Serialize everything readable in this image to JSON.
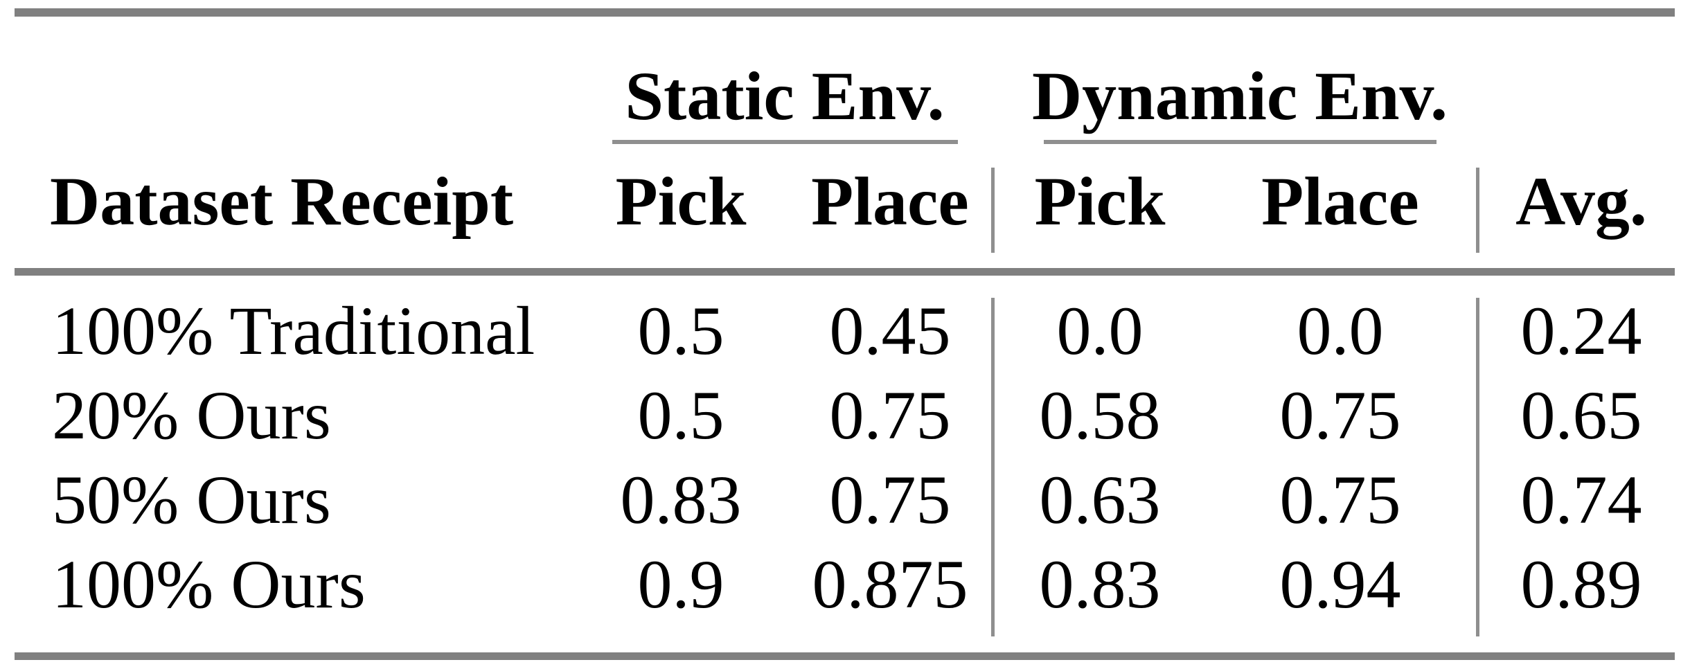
{
  "colors": {
    "background": "#ffffff",
    "text": "#000000",
    "rule_thick": "#808080",
    "rule_thin": "#8f8f8f"
  },
  "table": {
    "group_headers": [
      {
        "label": "Static Env."
      },
      {
        "label": "Dynamic Env."
      }
    ],
    "column_headers": {
      "dataset": "Dataset Receipt",
      "static_pick": "Pick",
      "static_place": "Place",
      "dynamic_pick": "Pick",
      "dynamic_place": "Place",
      "avg": "Avg."
    },
    "rows": [
      {
        "label": "100% Traditional",
        "values": [
          "0.5",
          "0.45",
          "0.0",
          "0.0",
          "0.24"
        ]
      },
      {
        "label": "20% Ours",
        "values": [
          "0.5",
          "0.75",
          "0.58",
          "0.75",
          "0.65"
        ]
      },
      {
        "label": "50% Ours",
        "values": [
          "0.83",
          "0.75",
          "0.63",
          "0.75",
          "0.74"
        ]
      },
      {
        "label": "100% Ours",
        "values": [
          "0.9",
          "0.875",
          "0.83",
          "0.94",
          "0.89"
        ]
      }
    ]
  }
}
